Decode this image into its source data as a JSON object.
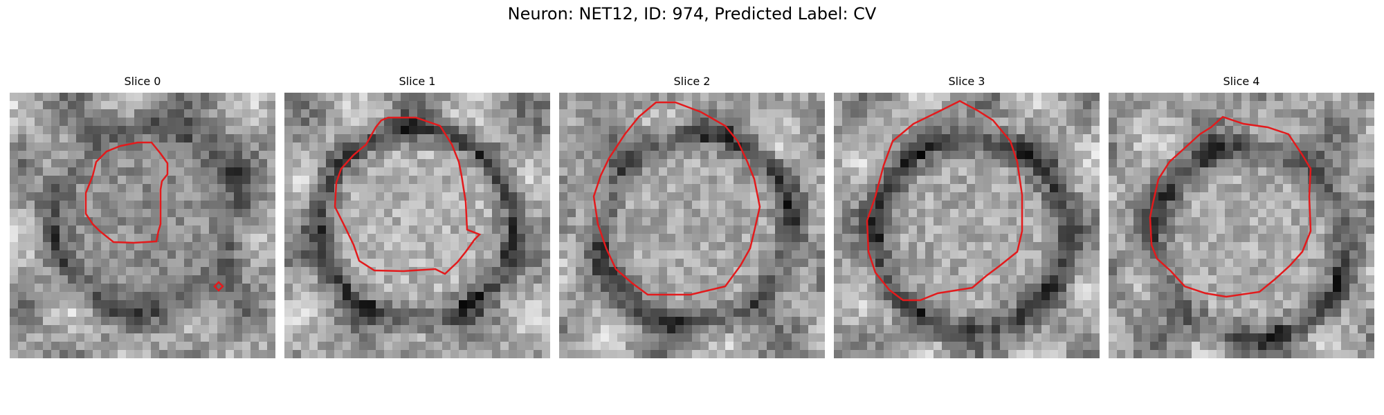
{
  "figure": {
    "title": "Neuron: NET12, ID: 974, Predicted Label: CV",
    "contour_color": "#e31a1c",
    "colormap": "gray"
  },
  "slices": [
    {
      "title": "Slice 0",
      "seed": 11,
      "center": [
        0.5,
        0.45
      ],
      "blob": 0.35,
      "ring": 0.7
    },
    {
      "title": "Slice 1",
      "seed": 23,
      "center": [
        0.48,
        0.48
      ],
      "blob": 0.85,
      "ring": 0.3
    },
    {
      "title": "Slice 2",
      "seed": 37,
      "center": [
        0.5,
        0.5
      ],
      "blob": 0.7,
      "ring": 0.3
    },
    {
      "title": "Slice 3",
      "seed": 41,
      "center": [
        0.5,
        0.52
      ],
      "blob": 0.7,
      "ring": 0.25
    },
    {
      "title": "Slice 4",
      "seed": 59,
      "center": [
        0.52,
        0.55
      ],
      "blob": 0.75,
      "ring": 0.45
    }
  ]
}
